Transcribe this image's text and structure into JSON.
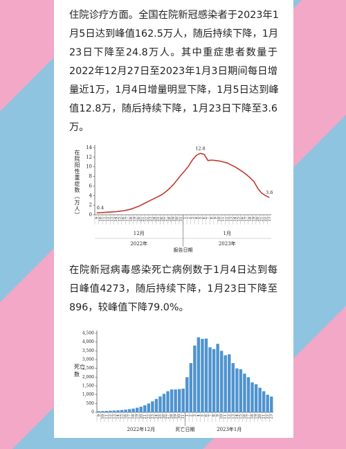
{
  "paragraphs": [
    {
      "lines": [
        "住院诊疗方面。全国在院新冠感染者于2023年1",
        "月5日达到峰值162.5万人，随后持续下降，1月",
        "23日下降至24.8万人。其中重症患者数量于",
        "2022年12月27日至2023年1月3日期间每日增",
        "量近1万，1月4日增量明显下降，1月5日达到峰",
        "值12.8万，随后持续下降，1月23日下降至3.6",
        "万。"
      ]
    },
    {
      "lines": [
        "在院新冠病毒感染死亡病例数于1月4日达到每",
        "日峰值4273，随后持续下降，1月23日下降至",
        "896，较峰值下降79.0%。"
      ]
    }
  ],
  "chart_data": [
    {
      "type": "line",
      "y_label": "在院阳性重症数（万人）",
      "x_label": "报告日期",
      "month_labels": [
        "12月",
        "1月"
      ],
      "year_labels": [
        "2022年",
        "2023年"
      ],
      "categories": [
        "9",
        "10",
        "11",
        "12",
        "13",
        "14",
        "15",
        "16",
        "17",
        "18",
        "19",
        "20",
        "21",
        "22",
        "23",
        "24",
        "25",
        "26",
        "27",
        "28",
        "29",
        "30",
        "31",
        "1",
        "2",
        "3",
        "4",
        "5",
        "6",
        "7",
        "8",
        "9",
        "10",
        "11",
        "12",
        "13",
        "14",
        "15",
        "16",
        "17",
        "18",
        "19",
        "20",
        "21",
        "22",
        "23"
      ],
      "values": [
        0.4,
        0.45,
        0.5,
        0.55,
        0.6,
        0.65,
        0.75,
        0.85,
        1.0,
        1.2,
        1.5,
        1.8,
        2.2,
        2.6,
        3.0,
        3.4,
        3.8,
        4.2,
        4.8,
        5.5,
        6.3,
        7.3,
        8.3,
        9.2,
        10.2,
        11.5,
        12.4,
        12.8,
        12.6,
        11.3,
        11.4,
        11.3,
        11.2,
        11.0,
        10.8,
        10.4,
        10.0,
        9.5,
        9.0,
        8.4,
        7.7,
        6.9,
        5.5,
        4.5,
        4.0,
        3.6
      ],
      "value_labels": [
        "0.4",
        null,
        null,
        null,
        null,
        null,
        null,
        null,
        null,
        null,
        null,
        null,
        null,
        null,
        null,
        null,
        null,
        null,
        null,
        null,
        null,
        null,
        null,
        null,
        null,
        null,
        null,
        "12.8",
        null,
        null,
        null,
        null,
        null,
        null,
        null,
        null,
        null,
        null,
        null,
        null,
        null,
        null,
        null,
        null,
        null,
        "3.6"
      ],
      "color": "#c0392b",
      "ylim": [
        0,
        14
      ],
      "yticks": [
        0,
        2,
        4,
        6,
        8,
        10,
        12,
        14
      ]
    },
    {
      "type": "bar",
      "y_label": "死亡数",
      "x_label": "死亡日期",
      "group_labels": [
        "2022年12月",
        "2023年1月"
      ],
      "categories": [
        "9",
        "10",
        "11",
        "12",
        "13",
        "14",
        "15",
        "16",
        "17",
        "18",
        "19",
        "20",
        "21",
        "22",
        "23",
        "24",
        "25",
        "26",
        "27",
        "28",
        "29",
        "30",
        "31",
        "1",
        "2",
        "3",
        "4",
        "5",
        "6",
        "7",
        "8",
        "9",
        "10",
        "11",
        "12",
        "13",
        "14",
        "15",
        "16",
        "17",
        "18",
        "19",
        "20",
        "21",
        "22",
        "23"
      ],
      "values": [
        60,
        70,
        80,
        90,
        100,
        110,
        130,
        150,
        180,
        210,
        260,
        320,
        400,
        500,
        620,
        760,
        900,
        1050,
        1200,
        1300,
        1300,
        1320,
        1350,
        2000,
        2800,
        3800,
        4273,
        4180,
        4200,
        3700,
        3600,
        3900,
        3500,
        3250,
        3300,
        2800,
        2500,
        2450,
        2200,
        2000,
        1700,
        1600,
        1400,
        1200,
        1000,
        896
      ],
      "color": "#4f93cf",
      "ylim": [
        0,
        4500
      ],
      "yticks": [
        0,
        500,
        {
          "value": 1000,
          "label": "1,000"
        },
        {
          "value": 1500,
          "label": "1,500"
        },
        {
          "value": 2000,
          "label": "2,000"
        },
        {
          "value": 2500,
          "label": "2,500"
        },
        {
          "value": 3000,
          "label": "3,000"
        },
        {
          "value": 3500,
          "label": "3,500"
        },
        {
          "value": 4000,
          "label": "4,000"
        },
        {
          "value": 4500,
          "label": "4,500"
        }
      ]
    }
  ]
}
